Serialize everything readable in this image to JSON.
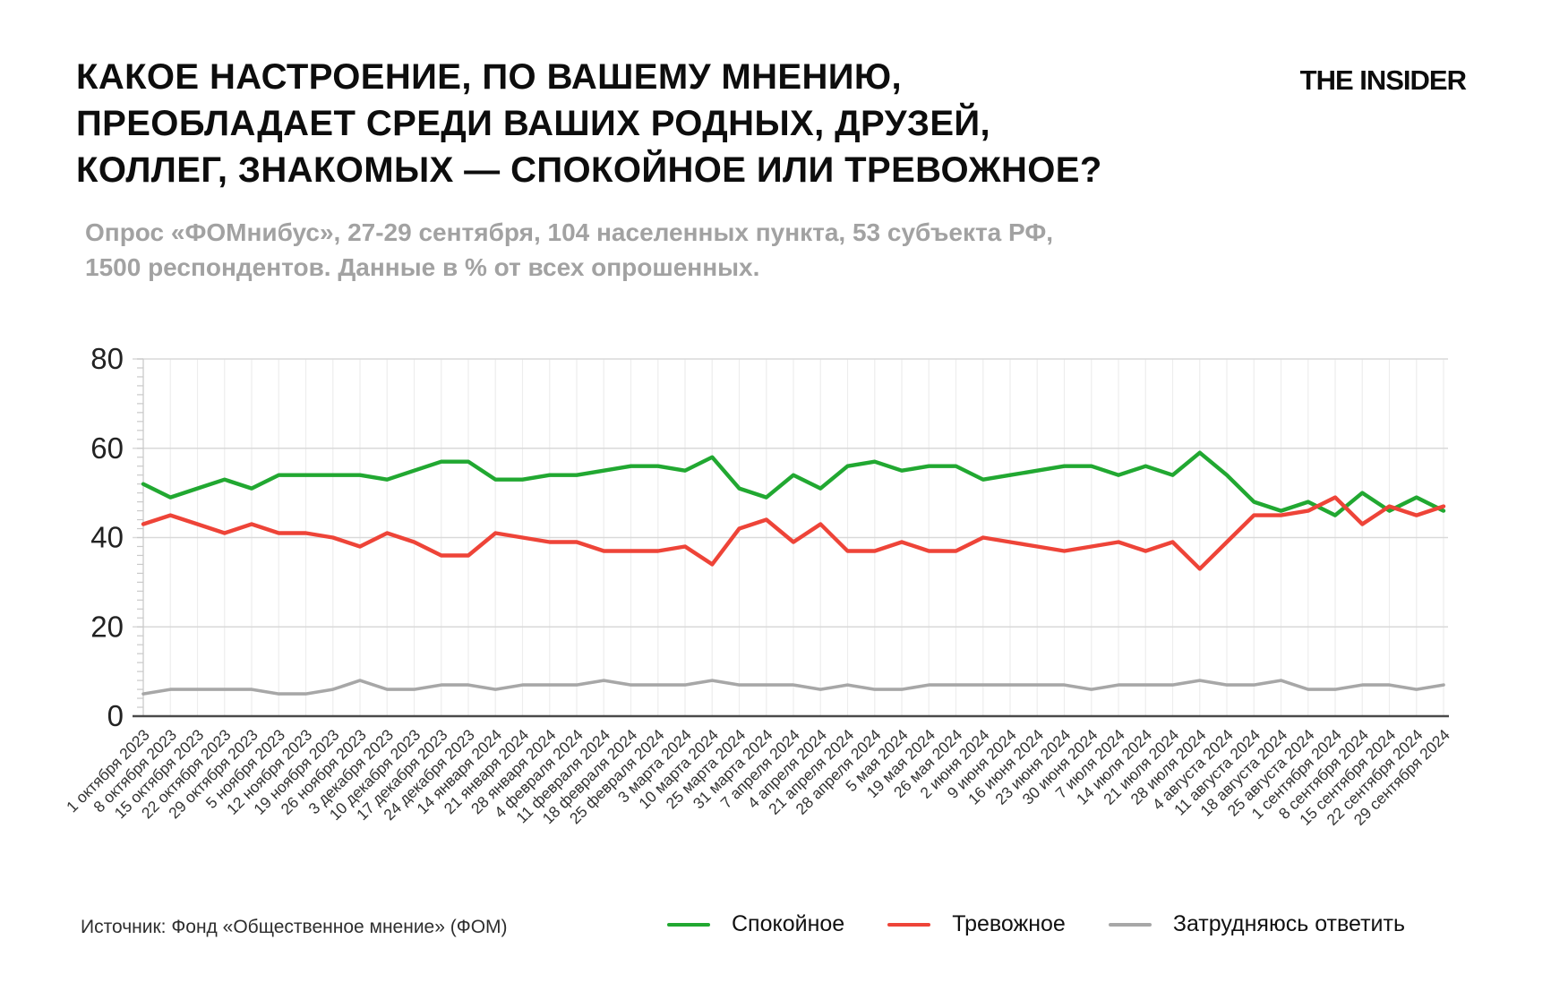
{
  "header": {
    "title_lines": [
      "КАКОЕ НАСТРОЕНИЕ, ПО ВАШЕМУ МНЕНИЮ,",
      "ПРЕОБЛАДАЕТ СРЕДИ ВАШИХ РОДНЫХ, ДРУЗЕЙ,",
      "КОЛЛЕГ, ЗНАКОМЫХ — СПОКОЙНОЕ ИЛИ ТРЕВОЖНОЕ?"
    ],
    "logo": "THE INSIDER",
    "subtitle_lines": [
      "Опрос «ФОМнибус», 27-29 сентября, 104 населенных пункта, 53 субъекта РФ,",
      "1500 респондентов. Данные в % от всех опрошенных."
    ]
  },
  "footer": {
    "source": "Источник: Фонд «Общественное мнение» (ФОМ)"
  },
  "colors": {
    "calm": "#21a831",
    "anxious": "#ee4438",
    "undecided": "#a7a7a7",
    "grid_major": "#d9d9d9",
    "grid_minor": "#ededed",
    "axis_zero": "#4a4a4a",
    "axis_line": "#c9c9c9",
    "tick_label": "#333333",
    "y_label": "#222222"
  },
  "chart_data": {
    "type": "line",
    "title": "",
    "xlabel": "",
    "ylabel": "",
    "ylim": [
      0,
      80
    ],
    "yticks": [
      0,
      20,
      40,
      60,
      80
    ],
    "grid": true,
    "legend_position": "bottom",
    "x": [
      "1 октября 2023",
      "8 октября 2023",
      "15 октября 2023",
      "22 октября 2023",
      "29 октября 2023",
      "5 ноября 2023",
      "12 ноября 2023",
      "19 ноября 2023",
      "26 ноября 2023",
      "3 декабря 2023",
      "10 декабря 2023",
      "17 декабря 2023",
      "24 декабря 2023",
      "14 января 2024",
      "21 января 2024",
      "28 января 2024",
      "4 февраля 2024",
      "11 февраля 2024",
      "18 февраля 2024",
      "25 февраля 2024",
      "3 марта 2024",
      "10 марта 2024",
      "25 марта 2024",
      "31 марта 2024",
      "7 апреля 2024",
      "4 апреля 2024",
      "21 апреля 2024",
      "28 апреля 2024",
      "5 мая 2024",
      "19 мая 2024",
      "26 мая 2024",
      "2 июня 2024",
      "9 июня 2024",
      "16 июня 2024",
      "23 июня 2024",
      "30 июня 2024",
      "7 июля 2024",
      "14 июля 2024",
      "21 июля 2024",
      "28 июля 2024",
      "4 августа 2024",
      "11 августа 2024",
      "18 августа 2024",
      "25 августа 2024",
      "1 сентября 2024",
      "8 сентября 2024",
      "15 сентября 2024",
      "22 сентября 2024",
      "29 сентября 2024"
    ],
    "series": [
      {
        "name": "Спокойное",
        "color": "#21a831",
        "values": [
          52,
          49,
          51,
          53,
          51,
          54,
          54,
          54,
          54,
          53,
          55,
          57,
          57,
          53,
          53,
          54,
          54,
          55,
          56,
          56,
          55,
          58,
          51,
          49,
          54,
          51,
          56,
          57,
          55,
          56,
          56,
          53,
          54,
          55,
          56,
          56,
          54,
          56,
          54,
          59,
          54,
          48,
          46,
          48,
          45,
          50,
          46,
          49,
          46
        ]
      },
      {
        "name": "Тревожное",
        "color": "#ee4438",
        "values": [
          43,
          45,
          43,
          41,
          43,
          41,
          41,
          40,
          38,
          41,
          39,
          36,
          36,
          41,
          40,
          39,
          39,
          37,
          37,
          37,
          38,
          34,
          42,
          44,
          39,
          43,
          37,
          37,
          39,
          37,
          37,
          40,
          39,
          38,
          37,
          38,
          39,
          37,
          39,
          33,
          39,
          45,
          45,
          46,
          49,
          43,
          47,
          45,
          47
        ]
      },
      {
        "name": "Затрудняюсь ответить",
        "color": "#a7a7a7",
        "values": [
          5,
          6,
          6,
          6,
          6,
          5,
          5,
          6,
          8,
          6,
          6,
          7,
          7,
          6,
          7,
          7,
          7,
          8,
          7,
          7,
          7,
          8,
          7,
          7,
          7,
          6,
          7,
          6,
          6,
          7,
          7,
          7,
          7,
          7,
          7,
          6,
          7,
          7,
          7,
          8,
          7,
          7,
          8,
          6,
          6,
          7,
          7,
          6,
          7
        ]
      }
    ]
  }
}
